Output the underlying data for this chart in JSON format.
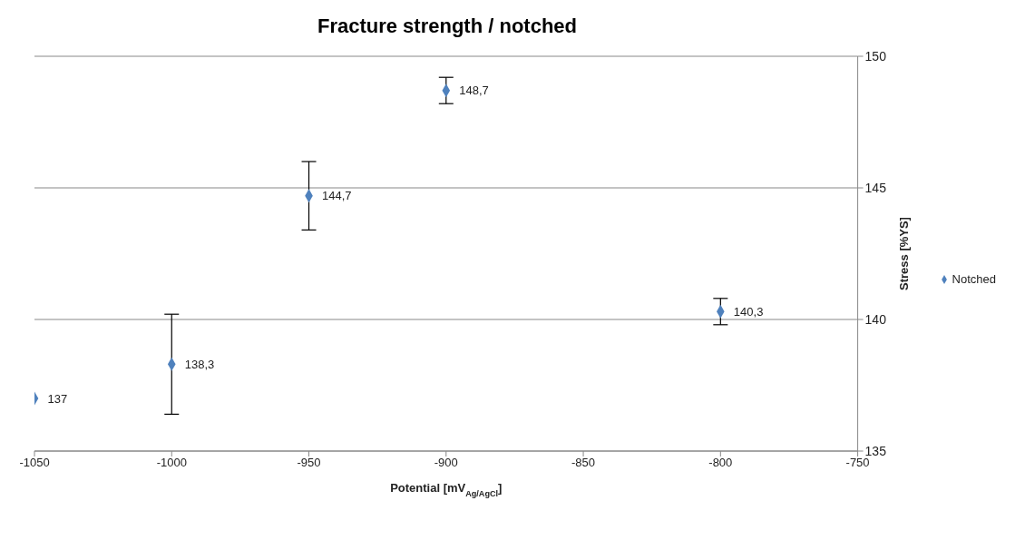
{
  "chart_data": {
    "type": "scatter",
    "title": "Fracture strength / notched",
    "xlabel": "Potential [mV$_{Ag/AgCl}$]",
    "ylabel": "Stress [%YS]",
    "x": [
      -1050,
      -1000,
      -950,
      -900,
      -800
    ],
    "series": [
      {
        "name": "Notched",
        "color": "#4f81bd",
        "values": [
          137,
          138.3,
          144.7,
          148.7,
          140.3
        ],
        "errors": [
          null,
          1.9,
          1.3,
          0.5,
          0.5
        ],
        "value_labels": [
          "137",
          "138,3",
          "144,7",
          "148,7",
          "140,3"
        ]
      }
    ],
    "xlim": [
      -1050,
      -750
    ],
    "xticks": [
      -1050,
      -1000,
      -950,
      -900,
      -850,
      -800,
      -750
    ],
    "ylim": [
      135,
      150
    ],
    "yticks": [
      135,
      140,
      145,
      150
    ],
    "grid": "y",
    "legend": "right",
    "marker": "diamond"
  }
}
